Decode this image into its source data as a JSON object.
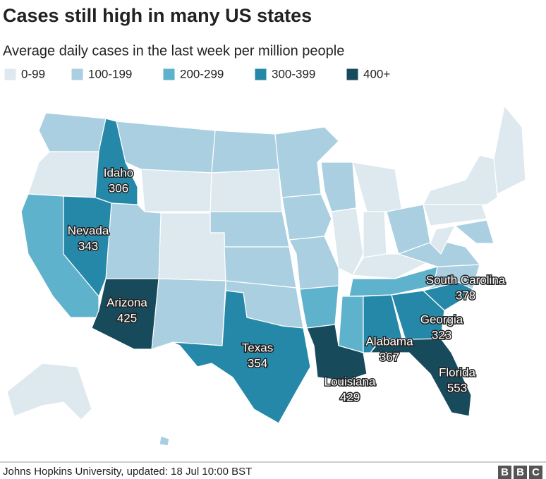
{
  "title": "Cases still high in many US states",
  "subtitle": "Average daily cases in the last week per million people",
  "legend": [
    {
      "label": "0-99",
      "color": "#dde9ee"
    },
    {
      "label": "100-199",
      "color": "#a9cfe0"
    },
    {
      "label": "200-299",
      "color": "#5fb2cc"
    },
    {
      "label": "300-399",
      "color": "#2588a8"
    },
    {
      "label": "400+",
      "color": "#174b5c"
    }
  ],
  "labeled_states": [
    {
      "name": "Idaho",
      "value": "306",
      "color": "#2588a8"
    },
    {
      "name": "Nevada",
      "value": "343",
      "color": "#2588a8"
    },
    {
      "name": "Arizona",
      "value": "425",
      "color": "#174b5c"
    },
    {
      "name": "Texas",
      "value": "354",
      "color": "#2588a8"
    },
    {
      "name": "Louisiana",
      "value": "429",
      "color": "#174b5c"
    },
    {
      "name": "Alabama",
      "value": "367",
      "color": "#2588a8"
    },
    {
      "name": "Georgia",
      "value": "323",
      "color": "#2588a8"
    },
    {
      "name": "South Carolina",
      "value": "378",
      "color": "#2588a8"
    },
    {
      "name": "Florida",
      "value": "553",
      "color": "#174b5c"
    }
  ],
  "source": "Johns Hopkins University, updated: 18 Jul 10:00 BST",
  "logo": [
    "B",
    "B",
    "C"
  ]
}
